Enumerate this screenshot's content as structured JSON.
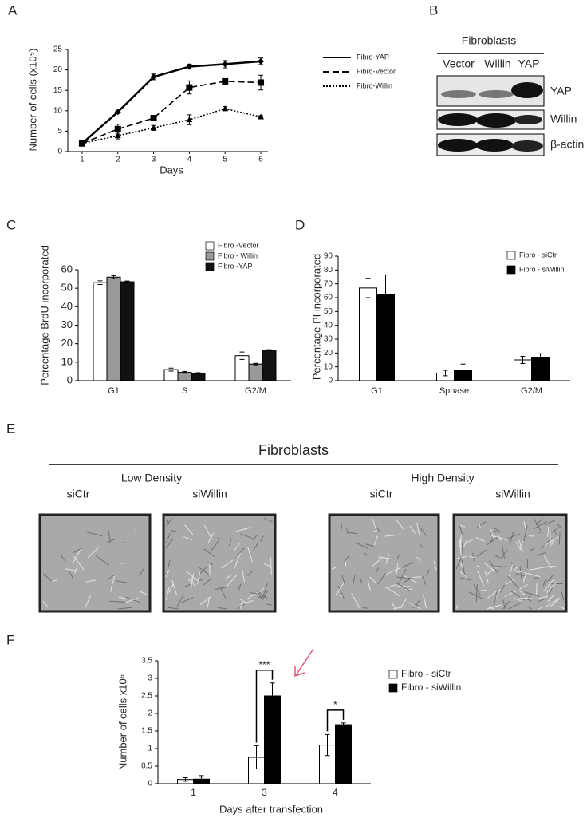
{
  "panel_labels": [
    "A",
    "B",
    "C",
    "D",
    "E",
    "F"
  ],
  "chart_data": [
    {
      "type": "line",
      "y_label": "Number of cells (x10⁵)",
      "x_label": "Days",
      "x": [
        1,
        2,
        3,
        4,
        5,
        6
      ],
      "xlim": [
        0.6,
        6.2
      ],
      "xticks": [
        1,
        2,
        3,
        4,
        5,
        6
      ],
      "ylim": [
        0,
        25
      ],
      "yticks": [
        0,
        5,
        10,
        15,
        20,
        25
      ],
      "series": [
        {
          "name": "Fibro-YAP",
          "color": "#000000",
          "dash": "solid",
          "marker": "diamond",
          "values": [
            2,
            9.7,
            18.3,
            20.8,
            21.4,
            22.1
          ],
          "errors": [
            0.3,
            0.3,
            0.7,
            0.6,
            0.9,
            0.8
          ]
        },
        {
          "name": "Fibro-Vector",
          "color": "#000000",
          "dash": "dashed",
          "marker": "square",
          "values": [
            2,
            5.5,
            8.2,
            15.7,
            17.2,
            16.9
          ],
          "errors": [
            0.3,
            1.2,
            0.4,
            1.6,
            0.5,
            1.8
          ]
        },
        {
          "name": "Fibro-Willin",
          "color": "#000000",
          "dash": "dotted",
          "marker": "triangle",
          "values": [
            2,
            3.9,
            5.8,
            7.8,
            10.5,
            8.5
          ],
          "errors": [
            0.3,
            0.8,
            0.6,
            1.2,
            0.5,
            0.3
          ]
        }
      ]
    },
    {
      "type": "bar",
      "y_label": "Percentage BrdU incorporated",
      "categories": [
        "G1",
        "S",
        "G2/M"
      ],
      "ylim": [
        0,
        60
      ],
      "yticks": [
        0,
        10,
        20,
        30,
        40,
        50,
        60
      ],
      "series": [
        {
          "name": "Fibro -Vector",
          "color": "#ffffff",
          "values": [
            53,
            6,
            13.5
          ],
          "errors": [
            1,
            0.8,
            2
          ]
        },
        {
          "name": "Fibro - Willin",
          "color": "#999999",
          "values": [
            56,
            4.5,
            9
          ],
          "errors": [
            0.8,
            0.5,
            0.4
          ]
        },
        {
          "name": "Fibro -YAP",
          "color": "#111111",
          "values": [
            53.5,
            4,
            16.5
          ],
          "errors": [
            0.4,
            0.3,
            0.3
          ]
        }
      ]
    },
    {
      "type": "bar",
      "y_label": "Percentage PI incorporated",
      "categories": [
        "G1",
        "Sphase",
        "G2/M"
      ],
      "ylim": [
        0,
        90
      ],
      "yticks": [
        0,
        10,
        20,
        30,
        40,
        50,
        60,
        70,
        80,
        90
      ],
      "series": [
        {
          "name": "Fibro - siCtr",
          "color": "#ffffff",
          "values": [
            67,
            5.5,
            15
          ],
          "errors": [
            7,
            2,
            2.5
          ]
        },
        {
          "name": "Fibro - siWillin",
          "color": "#000000",
          "values": [
            62.5,
            7.5,
            17
          ],
          "errors": [
            14,
            4.5,
            2.5
          ]
        }
      ]
    },
    {
      "type": "bar",
      "y_label": "Number of cells x10⁶",
      "x_label": "Days after transfection",
      "categories": [
        "1",
        "3",
        "4"
      ],
      "ylim": [
        0,
        3.5
      ],
      "yticks": [
        0,
        0.5,
        1,
        1.5,
        2,
        2.5,
        3,
        3.5
      ],
      "series": [
        {
          "name": "Fibro - siCtr",
          "color": "#ffffff",
          "values": [
            0.12,
            0.75,
            1.1
          ],
          "errors": [
            0.05,
            0.33,
            0.3
          ]
        },
        {
          "name": "Fibro - siWillin",
          "color": "#000000",
          "values": [
            0.13,
            2.5,
            1.68
          ],
          "errors": [
            0.1,
            0.37,
            0.05
          ]
        }
      ],
      "annotations": [
        {
          "text": "***",
          "x": "3"
        },
        {
          "text": "*",
          "x": "4"
        }
      ]
    }
  ],
  "blot": {
    "title": "Fibroblasts",
    "lanes": [
      "Vector",
      "Willin",
      "YAP"
    ],
    "rows": [
      "YAP",
      "Willin",
      "β-actin"
    ]
  },
  "micrographs": {
    "title": "Fibroblasts",
    "groups": [
      "Low Density",
      "High Density"
    ],
    "conditions": [
      "siCtr",
      "siWillin",
      "siCtr",
      "siWillin"
    ]
  }
}
